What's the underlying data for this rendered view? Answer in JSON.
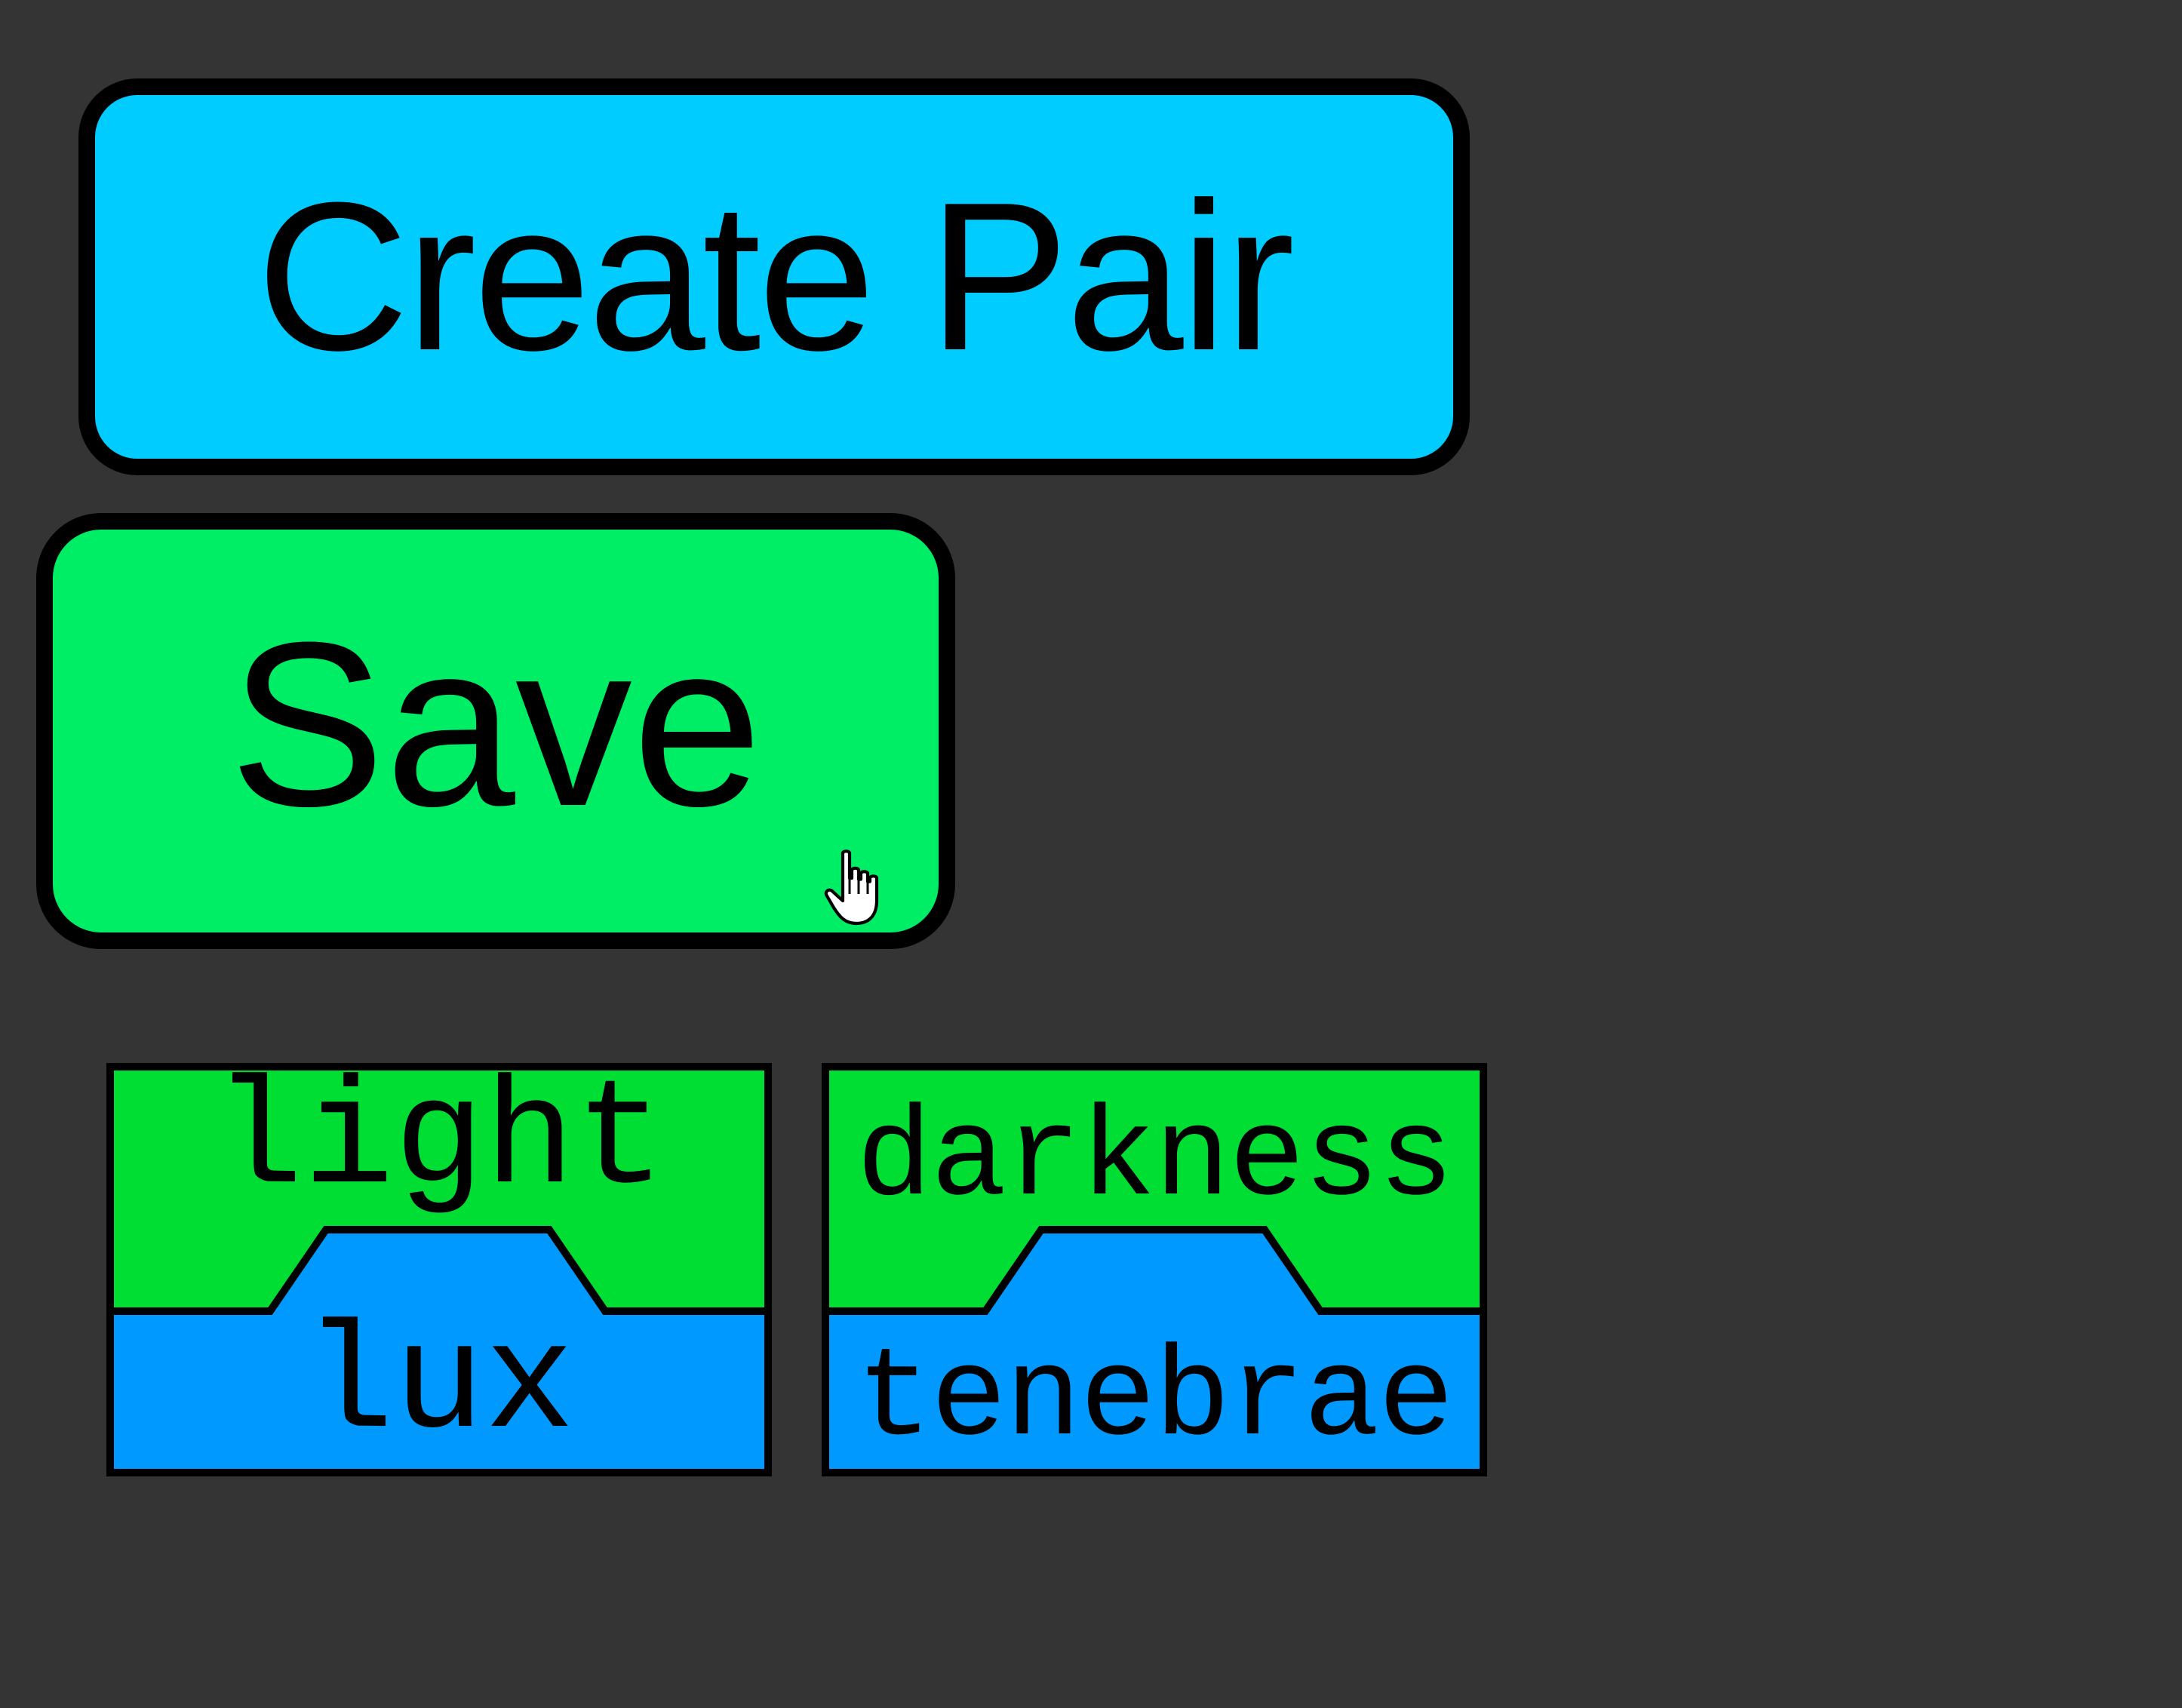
{
  "buttons": {
    "create_pair_label": "Create Pair",
    "save_label": "Save"
  },
  "cards": [
    {
      "top_word": "light",
      "bottom_word": "lux"
    },
    {
      "top_word": "darkness",
      "bottom_word": "tenebrae"
    }
  ],
  "colors": {
    "background": "#343434",
    "create_pair_button": "#00ccff",
    "save_button": "#00ee66",
    "card_top": "#00dd33",
    "card_bottom": "#0099ff",
    "border": "#000000"
  },
  "cursor": {
    "icon": "hand-pointer-icon"
  }
}
